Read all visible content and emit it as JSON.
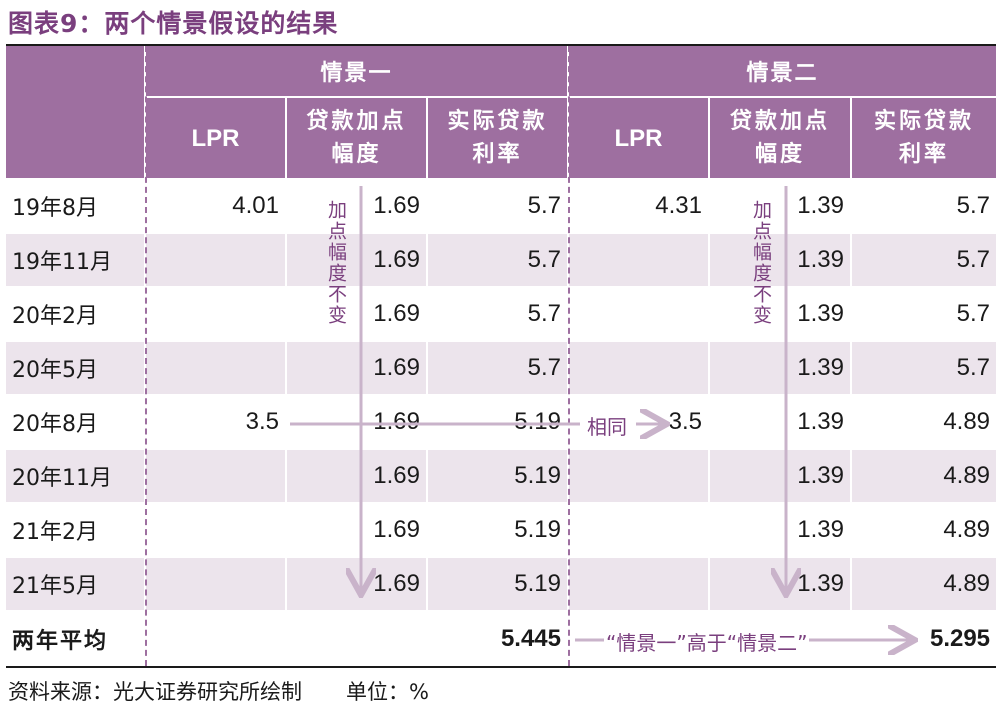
{
  "title": "图表9：两个情景假设的结果",
  "header": {
    "scenario1": "情景一",
    "scenario2": "情景二",
    "col_lpr": "LPR",
    "col_spread_line1": "贷款加点",
    "col_spread_line2": "幅度",
    "col_rate_line1": "实际贷款",
    "col_rate_line2": "利率"
  },
  "rows": [
    {
      "date": "19年8月",
      "s1_lpr": "4.01",
      "s1_spread": "1.69",
      "s1_rate": "5.7",
      "s2_lpr": "4.31",
      "s2_spread": "1.39",
      "s2_rate": "5.7"
    },
    {
      "date": "19年11月",
      "s1_lpr": "",
      "s1_spread": "1.69",
      "s1_rate": "5.7",
      "s2_lpr": "",
      "s2_spread": "1.39",
      "s2_rate": "5.7"
    },
    {
      "date": "20年2月",
      "s1_lpr": "",
      "s1_spread": "1.69",
      "s1_rate": "5.7",
      "s2_lpr": "",
      "s2_spread": "1.39",
      "s2_rate": "5.7"
    },
    {
      "date": "20年5月",
      "s1_lpr": "",
      "s1_spread": "1.69",
      "s1_rate": "5.7",
      "s2_lpr": "",
      "s2_spread": "1.39",
      "s2_rate": "5.7"
    },
    {
      "date": "20年8月",
      "s1_lpr": "3.5",
      "s1_spread": "1.69",
      "s1_rate": "5.19",
      "s2_lpr": "3.5",
      "s2_spread": "1.39",
      "s2_rate": "4.89"
    },
    {
      "date": "20年11月",
      "s1_lpr": "",
      "s1_spread": "1.69",
      "s1_rate": "5.19",
      "s2_lpr": "",
      "s2_spread": "1.39",
      "s2_rate": "4.89"
    },
    {
      "date": "21年2月",
      "s1_lpr": "",
      "s1_spread": "1.69",
      "s1_rate": "5.19",
      "s2_lpr": "",
      "s2_spread": "1.39",
      "s2_rate": "4.89"
    },
    {
      "date": "21年5月",
      "s1_lpr": "",
      "s1_spread": "1.69",
      "s1_rate": "5.19",
      "s2_lpr": "",
      "s2_spread": "1.39",
      "s2_rate": "4.89"
    }
  ],
  "average": {
    "label": "两年平均",
    "s1_rate": "5.445",
    "s2_rate": "5.295",
    "comparison_note": "“情景一”高于“情景二”"
  },
  "notes": {
    "spread_unchanged": "加点幅度不变",
    "same": "相同"
  },
  "footer": {
    "source": "资料来源：光大证券研究所绘制",
    "unit": "单位：%"
  },
  "colors": {
    "header_bg": "#9e6fa0",
    "alt_row_bg": "#ece4ec",
    "title": "#7a3f7e",
    "arrow": "#c9b3ca"
  }
}
